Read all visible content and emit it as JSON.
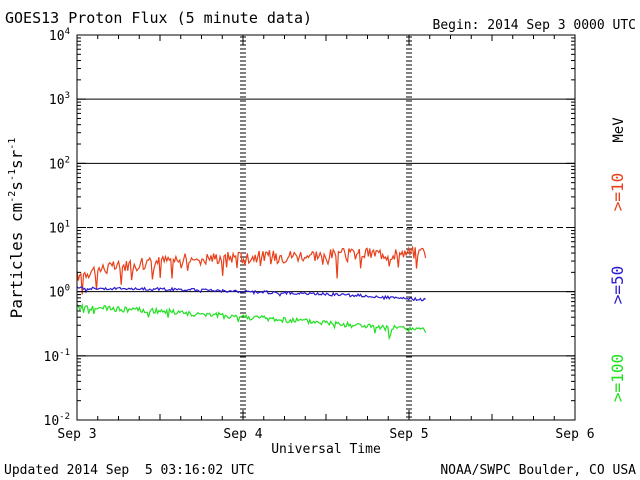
{
  "chart_data": {
    "type": "line",
    "title": "GOES13 Proton Flux (5 minute data)",
    "begin_label": "Begin: 2014 Sep 3 0000 UTC",
    "xlabel": "Universal Time",
    "ylabel": "Particles cm",
    "ylabel_exponents": [
      "-2",
      "-1",
      "-1"
    ],
    "ylabel_units": [
      "s",
      "sr"
    ],
    "yscale": "log",
    "ylim": [
      0.01,
      10000
    ],
    "xlim": [
      0,
      3
    ],
    "x_ticks": [
      {
        "x": 0,
        "label": "Sep 3"
      },
      {
        "x": 1,
        "label": "Sep 4"
      },
      {
        "x": 2,
        "label": "Sep 5"
      },
      {
        "x": 3,
        "label": "Sep 6"
      }
    ],
    "y_ticks": [
      {
        "value": 10000,
        "base": "10",
        "exp": "4"
      },
      {
        "value": 1000,
        "base": "10",
        "exp": "3"
      },
      {
        "value": 100,
        "base": "10",
        "exp": "2"
      },
      {
        "value": 10,
        "base": "10",
        "exp": "1"
      },
      {
        "value": 1,
        "base": "10",
        "exp": "0"
      },
      {
        "value": 0.1,
        "base": "10",
        "exp": "-1"
      },
      {
        "value": 0.01,
        "base": "10",
        "exp": "-2"
      }
    ],
    "solid_gridlines": [
      1000,
      100,
      1,
      0.1
    ],
    "dashed_gridlines": [
      10
    ],
    "day_markers": [
      1,
      2
    ],
    "energy_unit": "MeV",
    "series": [
      {
        "name": ">=10",
        "color": "#e8401a",
        "x": [
          0,
          0.1,
          0.2,
          0.3,
          0.4,
          0.5,
          0.6,
          0.7,
          0.8,
          0.9,
          1.0,
          1.1,
          1.2,
          1.3,
          1.4,
          1.5,
          1.6,
          1.7,
          1.8,
          1.9,
          2.0,
          2.1
        ],
        "values": [
          1.8,
          2.2,
          2.4,
          2.6,
          2.8,
          3.0,
          3.2,
          3.3,
          3.4,
          3.5,
          3.5,
          3.6,
          3.7,
          3.7,
          3.8,
          3.8,
          3.9,
          3.9,
          4.0,
          4.0,
          4.1,
          4.2
        ]
      },
      {
        "name": ">=50",
        "color": "#2a1ad0",
        "x": [
          0,
          0.1,
          0.2,
          0.3,
          0.4,
          0.5,
          0.6,
          0.7,
          0.8,
          0.9,
          1.0,
          1.1,
          1.2,
          1.3,
          1.4,
          1.5,
          1.6,
          1.7,
          1.8,
          1.9,
          2.0,
          2.1
        ],
        "values": [
          1.15,
          1.13,
          1.12,
          1.12,
          1.1,
          1.1,
          1.08,
          1.07,
          1.05,
          1.03,
          1.0,
          0.99,
          0.97,
          0.95,
          0.93,
          0.92,
          0.9,
          0.87,
          0.84,
          0.8,
          0.77,
          0.75
        ]
      },
      {
        "name": ">=100",
        "color": "#22e022",
        "x": [
          0,
          0.1,
          0.2,
          0.3,
          0.4,
          0.5,
          0.6,
          0.7,
          0.8,
          0.9,
          1.0,
          1.1,
          1.2,
          1.3,
          1.4,
          1.5,
          1.6,
          1.7,
          1.8,
          1.9,
          2.0,
          2.1
        ],
        "values": [
          0.58,
          0.56,
          0.54,
          0.53,
          0.51,
          0.5,
          0.48,
          0.46,
          0.44,
          0.42,
          0.41,
          0.39,
          0.37,
          0.36,
          0.34,
          0.33,
          0.31,
          0.3,
          0.28,
          0.27,
          0.26,
          0.25
        ]
      }
    ],
    "footer_left": "Updated 2014 Sep  5 03:16:02 UTC",
    "footer_right": "NOAA/SWPC Boulder, CO USA"
  }
}
